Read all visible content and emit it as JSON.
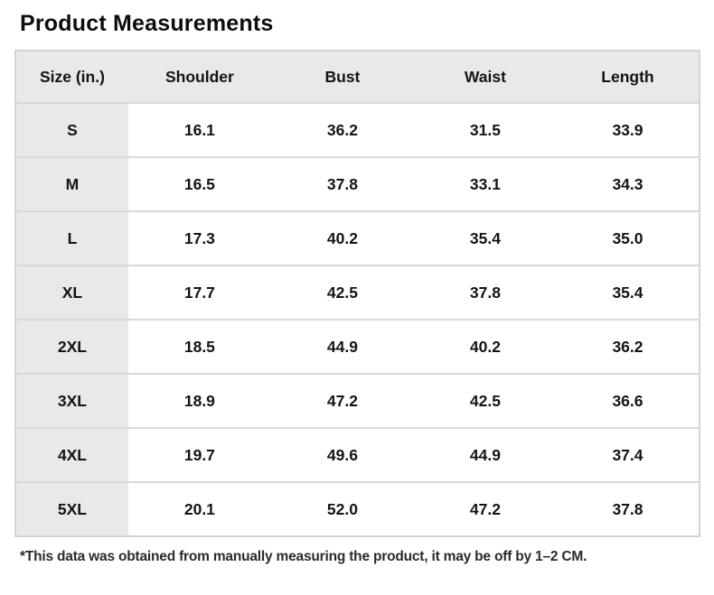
{
  "title": "Product Measurements",
  "footnote": "*This data was obtained from manually measuring the product, it may be off by 1–2 CM.",
  "table": {
    "headers": [
      "Size (in.)",
      "Shoulder",
      "Bust",
      "Waist",
      "Length"
    ],
    "rows": [
      [
        "S",
        "16.1",
        "36.2",
        "31.5",
        "33.9"
      ],
      [
        "M",
        "16.5",
        "37.8",
        "33.1",
        "34.3"
      ],
      [
        "L",
        "17.3",
        "40.2",
        "35.4",
        "35.0"
      ],
      [
        "XL",
        "17.7",
        "42.5",
        "37.8",
        "35.4"
      ],
      [
        "2XL",
        "18.5",
        "44.9",
        "40.2",
        "36.2"
      ],
      [
        "3XL",
        "18.9",
        "47.2",
        "42.5",
        "36.6"
      ],
      [
        "4XL",
        "19.7",
        "49.6",
        "44.9",
        "37.4"
      ],
      [
        "5XL",
        "20.1",
        "52.0",
        "47.2",
        "37.8"
      ]
    ]
  },
  "chart_data": {
    "type": "table",
    "title": "Product Measurements",
    "unit": "in.",
    "columns": [
      "Size (in.)",
      "Shoulder",
      "Bust",
      "Waist",
      "Length"
    ],
    "rows": [
      [
        "S",
        16.1,
        36.2,
        31.5,
        33.9
      ],
      [
        "M",
        16.5,
        37.8,
        33.1,
        34.3
      ],
      [
        "L",
        17.3,
        40.2,
        35.4,
        35.0
      ],
      [
        "XL",
        17.7,
        42.5,
        37.8,
        35.4
      ],
      [
        "2XL",
        18.5,
        44.9,
        40.2,
        36.2
      ],
      [
        "3XL",
        18.9,
        47.2,
        42.5,
        36.6
      ],
      [
        "4XL",
        19.7,
        49.6,
        44.9,
        37.4
      ],
      [
        "5XL",
        20.1,
        52.0,
        47.2,
        37.8
      ]
    ],
    "footnote": "*This data was obtained from manually measuring the product, it may be off by 1–2 CM."
  },
  "colors": {
    "header_bg": "#e9e9e9",
    "cell_bg": "#ffffff",
    "row_border": "#d9d9d9",
    "outer_border": "#d3d3d3",
    "text": "#141414"
  }
}
